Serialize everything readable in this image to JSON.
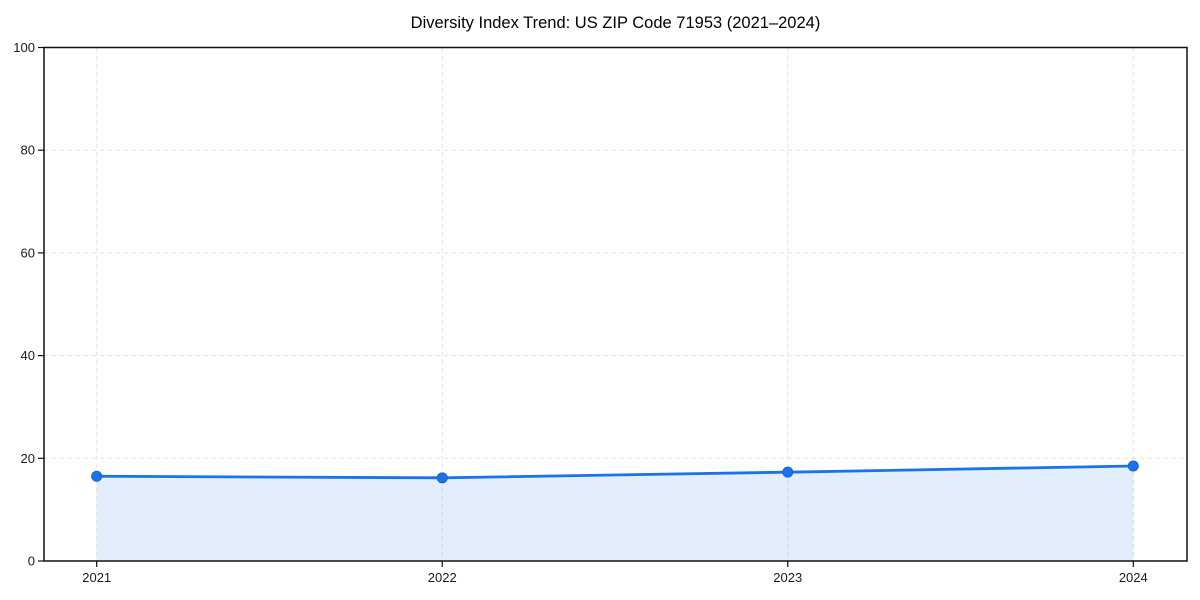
{
  "title": "Diversity Index Trend: US ZIP Code 71953 (2021–2024)",
  "chart_data": {
    "type": "line",
    "title": "Diversity Index Trend: US ZIP Code 71953 (2021–2024)",
    "x": [
      2021,
      2022,
      2023,
      2024
    ],
    "xticklabels": [
      "2021",
      "2022",
      "2023",
      "2024"
    ],
    "series": [
      {
        "name": "Diversity Index",
        "values": [
          16.5,
          16.2,
          17.3,
          18.5
        ]
      }
    ],
    "xlabel": "",
    "ylabel": "",
    "ylim": [
      0,
      100
    ],
    "yticks": [
      0,
      20,
      40,
      60,
      80,
      100
    ],
    "grid": true,
    "grid_style": "dashed",
    "legend": "none",
    "area_fill": true,
    "colors": {
      "line": "#1a73e8",
      "marker": "#1a73e8",
      "marker_edge": "#1764cf",
      "fill": "#1a73e8",
      "fill_opacity": 0.12,
      "grid": "#e2e2e2",
      "spine": "#111111",
      "tick_text": "#1a1a1a",
      "title_text": "#000000"
    }
  }
}
